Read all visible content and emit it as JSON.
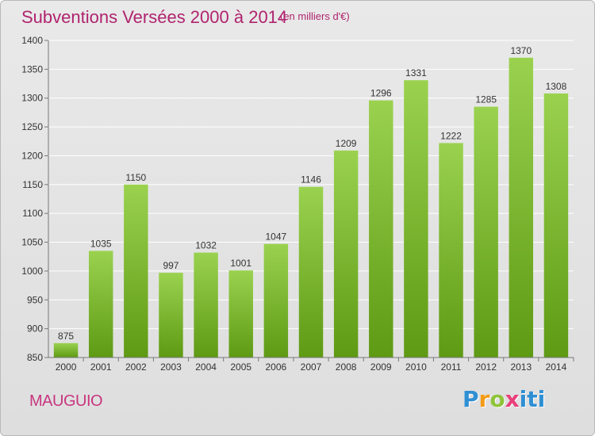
{
  "header": {
    "title": "Subventions Versées 2000 à 2014",
    "subtitle": "(en milliers d'€)"
  },
  "footer": {
    "city": "MAUGUIO",
    "logo_letters": [
      "P",
      "r",
      "o",
      "x",
      "iti"
    ]
  },
  "colors": {
    "title": "#b0236e",
    "bar_top": "#9ad24f",
    "bar_bottom": "#5e9a14",
    "background": "#e3e3e3"
  },
  "chart_data": {
    "type": "bar",
    "title": "Subventions Versées 2000 à 2014",
    "subtitle": "(en milliers d'€)",
    "categories": [
      "2000",
      "2001",
      "2002",
      "2003",
      "2004",
      "2005",
      "2006",
      "2007",
      "2008",
      "2009",
      "2010",
      "2011",
      "2012",
      "2013",
      "2014"
    ],
    "values": [
      875,
      1035,
      1150,
      997,
      1032,
      1001,
      1047,
      1146,
      1209,
      1296,
      1331,
      1222,
      1285,
      1370,
      1308
    ],
    "ylim": [
      850,
      1400
    ],
    "yticks": [
      850,
      900,
      950,
      1000,
      1050,
      1100,
      1150,
      1200,
      1250,
      1300,
      1350,
      1400
    ],
    "grid": true,
    "legend": "none"
  }
}
